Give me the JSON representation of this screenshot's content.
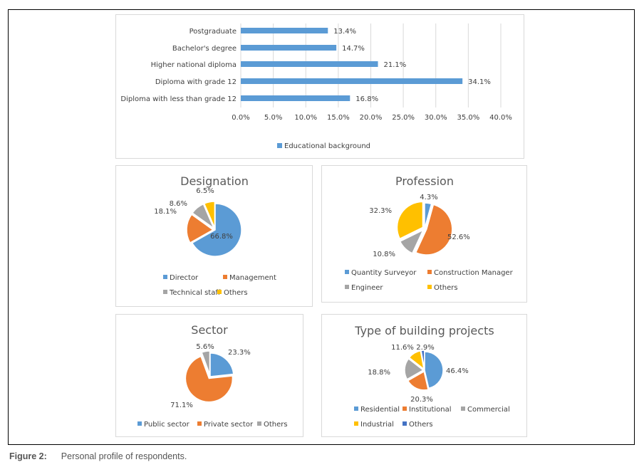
{
  "caption": {
    "label": "Figure 2:",
    "text": "Personal profile of respondents."
  },
  "colors": {
    "blue": "#5b9bd5",
    "orange": "#ed7d31",
    "gray": "#a5a5a5",
    "yellow": "#ffc000",
    "darkblue": "#4472c4",
    "text": "#404040",
    "grid": "#d9d9d9"
  },
  "chart_data": [
    {
      "type": "bar",
      "orientation": "horizontal",
      "title": "",
      "categories": [
        "Postgraduate",
        "Bachelor's degree",
        "Higher national diploma",
        "Diploma with grade 12",
        "Diploma with less than grade 12"
      ],
      "series": [
        {
          "name": "Educational background",
          "values": [
            13.4,
            14.7,
            21.1,
            34.1,
            16.8
          ]
        }
      ],
      "data_labels": [
        "13.4%",
        "14.7%",
        "21.1%",
        "34.1%",
        "16.8%"
      ],
      "xticks": [
        "0.0%",
        "5.0%",
        "10.0%",
        "15.0%",
        "20.0%",
        "25.0%",
        "30.0%",
        "35.0%",
        "40.0%"
      ],
      "xlim": [
        0,
        40
      ],
      "grid": true,
      "legend": "bottom",
      "xlabel": "",
      "ylabel": ""
    },
    {
      "type": "pie",
      "title": "Designation",
      "labels": [
        "Director",
        "Management",
        "Technical staff",
        "Others"
      ],
      "values": [
        66.8,
        18.1,
        8.6,
        6.5
      ],
      "data_labels": [
        "66.8%",
        "18.1%",
        "8.6%",
        "6.5%"
      ],
      "colors": [
        "#5b9bd5",
        "#ed7d31",
        "#a5a5a5",
        "#ffc000"
      ],
      "legend": "bottom"
    },
    {
      "type": "pie",
      "title": "Profession",
      "labels": [
        "Quantity Surveyor",
        "Construction Manager",
        "Engineer",
        "Others"
      ],
      "values": [
        4.3,
        52.6,
        10.8,
        32.3
      ],
      "data_labels": [
        "4.3%",
        "52.6%",
        "10.8%",
        "32.3%"
      ],
      "colors": [
        "#5b9bd5",
        "#ed7d31",
        "#a5a5a5",
        "#ffc000"
      ],
      "legend": "bottom"
    },
    {
      "type": "pie",
      "title": "Sector",
      "labels": [
        "Public sector",
        "Private sector",
        "Others"
      ],
      "values": [
        23.3,
        71.1,
        5.6
      ],
      "data_labels": [
        "23.3%",
        "71.1%",
        "5.6%"
      ],
      "colors": [
        "#5b9bd5",
        "#ed7d31",
        "#a5a5a5"
      ],
      "legend": "bottom"
    },
    {
      "type": "pie",
      "title": "Type of building projects",
      "labels": [
        "Residential",
        "Institutional",
        "Commercial",
        "Industrial",
        "Others"
      ],
      "values": [
        46.4,
        20.3,
        18.8,
        11.6,
        2.9
      ],
      "data_labels": [
        "46.4%",
        "20.3%",
        "18.8%",
        "11.6%",
        "2.9%"
      ],
      "colors": [
        "#5b9bd5",
        "#ed7d31",
        "#a5a5a5",
        "#ffc000",
        "#4472c4"
      ],
      "legend": "bottom"
    }
  ]
}
